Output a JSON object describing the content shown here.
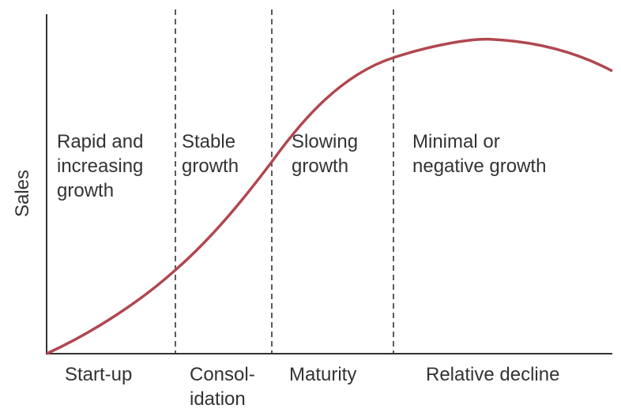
{
  "y_axis_label": "Sales",
  "stages": [
    {
      "phase_label": "Start-up",
      "growth_label": "Rapid and\nincreasing\ngrowth"
    },
    {
      "phase_label": "Consol-\nidation",
      "growth_label": "Stable\ngrowth"
    },
    {
      "phase_label": "Maturity",
      "growth_label": "Slowing\ngrowth"
    },
    {
      "phase_label": "Relative decline",
      "growth_label": "Minimal or\nnegative growth"
    }
  ],
  "colors": {
    "curve": "#b0474f",
    "axis": "#333333",
    "divider": "#333333",
    "text": "#333333"
  }
}
